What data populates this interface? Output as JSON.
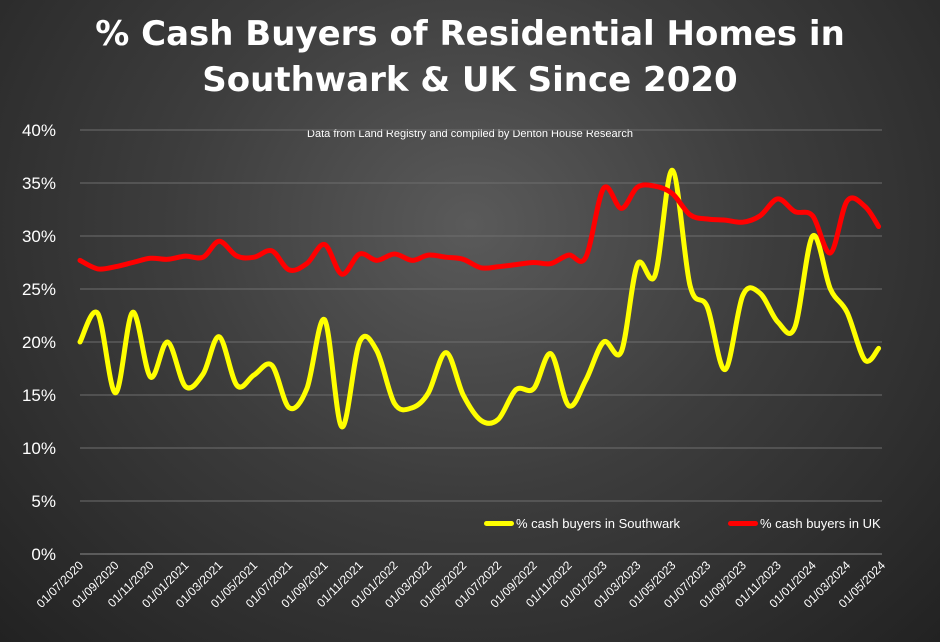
{
  "chart_data": {
    "type": "line",
    "title_line1": "% Cash Buyers of Residential Homes in",
    "title_line2": "Southwark & UK Since 2020",
    "subtitle": "Data from Land Registry and compiled by Denton House Research",
    "ylim": [
      0,
      40
    ],
    "y_ticks": [
      "0%",
      "5%",
      "10%",
      "15%",
      "20%",
      "25%",
      "30%",
      "35%",
      "40%"
    ],
    "x_start": "2020-07-01",
    "x_end": "2024-05-01",
    "x_tick_labels": [
      "01/07/2020",
      "01/09/2020",
      "01/11/2020",
      "01/01/2021",
      "01/03/2021",
      "01/05/2021",
      "01/07/2021",
      "01/09/2021",
      "01/11/2021",
      "01/01/2022",
      "01/03/2022",
      "01/05/2022",
      "01/07/2022",
      "01/09/2022",
      "01/11/2022",
      "01/01/2023",
      "01/03/2023",
      "01/05/2023",
      "01/07/2023",
      "01/09/2023",
      "01/11/2023",
      "01/01/2024",
      "01/03/2024",
      "01/05/2024"
    ],
    "legend_position": "bottom-right",
    "grid": true,
    "series": [
      {
        "name": "% cash buyers in Southwark",
        "color": "#ffff00",
        "values": [
          {
            "x": "2020-07-01",
            "y": 20.0
          },
          {
            "x": "2020-08-01",
            "y": 22.7
          },
          {
            "x": "2020-09-01",
            "y": 15.2
          },
          {
            "x": "2020-10-01",
            "y": 22.8
          },
          {
            "x": "2020-11-01",
            "y": 16.7
          },
          {
            "x": "2020-12-01",
            "y": 20.0
          },
          {
            "x": "2021-01-01",
            "y": 15.8
          },
          {
            "x": "2021-02-01",
            "y": 17.0
          },
          {
            "x": "2021-03-01",
            "y": 20.5
          },
          {
            "x": "2021-04-01",
            "y": 15.9
          },
          {
            "x": "2021-05-01",
            "y": 16.9
          },
          {
            "x": "2021-06-01",
            "y": 17.8
          },
          {
            "x": "2021-07-01",
            "y": 13.8
          },
          {
            "x": "2021-08-01",
            "y": 15.6
          },
          {
            "x": "2021-09-01",
            "y": 22.1
          },
          {
            "x": "2021-10-01",
            "y": 12.0
          },
          {
            "x": "2021-11-01",
            "y": 20.0
          },
          {
            "x": "2021-12-01",
            "y": 19.2
          },
          {
            "x": "2022-01-01",
            "y": 14.2
          },
          {
            "x": "2022-02-01",
            "y": 13.8
          },
          {
            "x": "2022-03-01",
            "y": 15.2
          },
          {
            "x": "2022-04-01",
            "y": 19.0
          },
          {
            "x": "2022-05-01",
            "y": 15.0
          },
          {
            "x": "2022-06-01",
            "y": 12.6
          },
          {
            "x": "2022-07-01",
            "y": 12.7
          },
          {
            "x": "2022-08-01",
            "y": 15.5
          },
          {
            "x": "2022-09-01",
            "y": 15.6
          },
          {
            "x": "2022-10-01",
            "y": 18.9
          },
          {
            "x": "2022-11-01",
            "y": 14.0
          },
          {
            "x": "2022-12-01",
            "y": 16.4
          },
          {
            "x": "2023-01-01",
            "y": 20.0
          },
          {
            "x": "2023-02-01",
            "y": 19.1
          },
          {
            "x": "2023-03-01",
            "y": 27.3
          },
          {
            "x": "2023-04-01",
            "y": 26.3
          },
          {
            "x": "2023-05-01",
            "y": 36.2
          },
          {
            "x": "2023-06-01",
            "y": 25.3
          },
          {
            "x": "2023-07-01",
            "y": 23.3
          },
          {
            "x": "2023-08-01",
            "y": 17.4
          },
          {
            "x": "2023-09-01",
            "y": 24.4
          },
          {
            "x": "2023-10-01",
            "y": 24.6
          },
          {
            "x": "2023-11-01",
            "y": 21.9
          },
          {
            "x": "2023-12-01",
            "y": 21.4
          },
          {
            "x": "2024-01-01",
            "y": 30.0
          },
          {
            "x": "2024-02-01",
            "y": 25.0
          },
          {
            "x": "2024-03-01",
            "y": 22.8
          },
          {
            "x": "2024-04-01",
            "y": 18.3
          },
          {
            "x": "2024-04-25",
            "y": 19.4
          }
        ]
      },
      {
        "name": "% cash buyers in UK",
        "color": "#ff0000",
        "values": [
          {
            "x": "2020-07-01",
            "y": 27.7
          },
          {
            "x": "2020-08-01",
            "y": 26.9
          },
          {
            "x": "2020-09-01",
            "y": 27.1
          },
          {
            "x": "2020-10-01",
            "y": 27.5
          },
          {
            "x": "2020-11-01",
            "y": 27.9
          },
          {
            "x": "2020-12-01",
            "y": 27.8
          },
          {
            "x": "2021-01-01",
            "y": 28.1
          },
          {
            "x": "2021-02-01",
            "y": 28.0
          },
          {
            "x": "2021-03-01",
            "y": 29.5
          },
          {
            "x": "2021-04-01",
            "y": 28.1
          },
          {
            "x": "2021-05-01",
            "y": 28.0
          },
          {
            "x": "2021-06-01",
            "y": 28.6
          },
          {
            "x": "2021-07-01",
            "y": 26.8
          },
          {
            "x": "2021-08-01",
            "y": 27.4
          },
          {
            "x": "2021-09-01",
            "y": 29.2
          },
          {
            "x": "2021-10-01",
            "y": 26.4
          },
          {
            "x": "2021-11-01",
            "y": 28.3
          },
          {
            "x": "2021-12-01",
            "y": 27.7
          },
          {
            "x": "2022-01-01",
            "y": 28.3
          },
          {
            "x": "2022-02-01",
            "y": 27.7
          },
          {
            "x": "2022-03-01",
            "y": 28.2
          },
          {
            "x": "2022-04-01",
            "y": 28.0
          },
          {
            "x": "2022-05-01",
            "y": 27.8
          },
          {
            "x": "2022-06-01",
            "y": 27.0
          },
          {
            "x": "2022-07-01",
            "y": 27.1
          },
          {
            "x": "2022-08-01",
            "y": 27.3
          },
          {
            "x": "2022-09-01",
            "y": 27.5
          },
          {
            "x": "2022-10-01",
            "y": 27.4
          },
          {
            "x": "2022-11-01",
            "y": 28.2
          },
          {
            "x": "2022-12-01",
            "y": 28.0
          },
          {
            "x": "2023-01-01",
            "y": 34.5
          },
          {
            "x": "2023-02-01",
            "y": 32.6
          },
          {
            "x": "2023-03-01",
            "y": 34.6
          },
          {
            "x": "2023-04-01",
            "y": 34.7
          },
          {
            "x": "2023-05-01",
            "y": 34.0
          },
          {
            "x": "2023-06-01",
            "y": 32.0
          },
          {
            "x": "2023-07-01",
            "y": 31.6
          },
          {
            "x": "2023-08-01",
            "y": 31.5
          },
          {
            "x": "2023-09-01",
            "y": 31.3
          },
          {
            "x": "2023-10-01",
            "y": 31.9
          },
          {
            "x": "2023-11-01",
            "y": 33.5
          },
          {
            "x": "2023-12-01",
            "y": 32.3
          },
          {
            "x": "2024-01-01",
            "y": 31.9
          },
          {
            "x": "2024-02-01",
            "y": 28.4
          },
          {
            "x": "2024-03-01",
            "y": 33.3
          },
          {
            "x": "2024-04-01",
            "y": 32.8
          },
          {
            "x": "2024-04-25",
            "y": 30.9
          }
        ]
      }
    ]
  }
}
